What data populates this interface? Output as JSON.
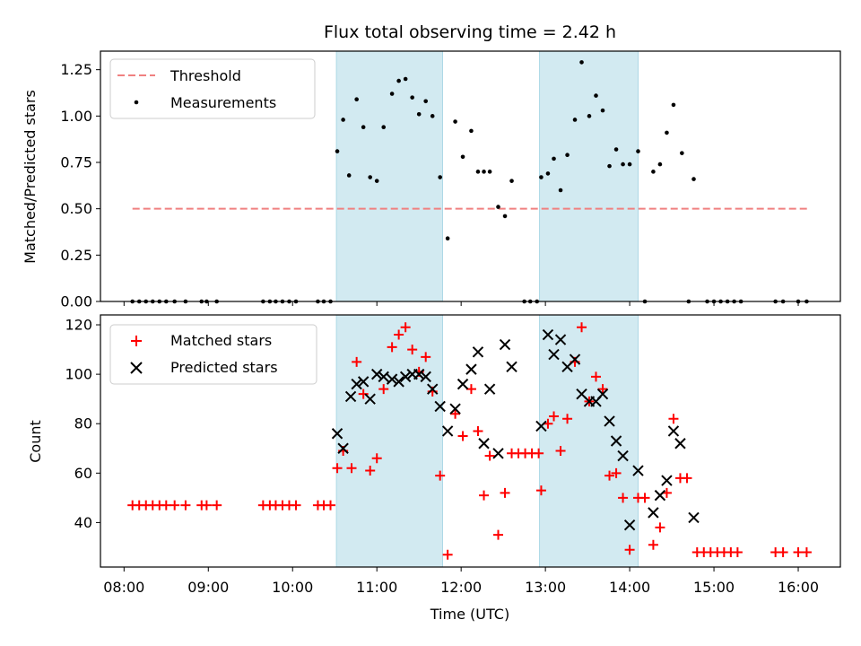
{
  "chart_data": {
    "type": "scatter",
    "title": "Flux total observing time = 2.42 h",
    "xlabel": "Time (UTC)",
    "x_range_hours": [
      7.72,
      16.5
    ],
    "x_ticks": [
      {
        "hour": 8,
        "label": "08:00"
      },
      {
        "hour": 9,
        "label": "09:00"
      },
      {
        "hour": 10,
        "label": "10:00"
      },
      {
        "hour": 11,
        "label": "11:00"
      },
      {
        "hour": 12,
        "label": "12:00"
      },
      {
        "hour": 13,
        "label": "13:00"
      },
      {
        "hour": 14,
        "label": "14:00"
      },
      {
        "hour": 15,
        "label": "15:00"
      },
      {
        "hour": 16,
        "label": "16:00"
      }
    ],
    "shaded_intervals_hours": [
      [
        10.52,
        11.78
      ],
      [
        12.93,
        14.1
      ]
    ],
    "shade_color": "#add8e6",
    "panels": [
      {
        "id": "ratio",
        "ylabel": "Matched/Predicted stars",
        "ylim": [
          0,
          1.35
        ],
        "y_ticks": [
          {
            "value": 0,
            "label": "0.00"
          },
          {
            "value": 0.25,
            "label": "0.25"
          },
          {
            "value": 0.5,
            "label": "0.50"
          },
          {
            "value": 0.75,
            "label": "0.75"
          },
          {
            "value": 1.0,
            "label": "1.00"
          },
          {
            "value": 1.25,
            "label": "1.25"
          }
        ],
        "threshold": {
          "name": "Threshold",
          "value": 0.5,
          "x_range": [
            8.1,
            16.12
          ],
          "color": "#f08080"
        },
        "legend": [
          "Threshold",
          "Measurements"
        ],
        "series": [
          {
            "name": "Measurements",
            "marker": "dot",
            "color": "#000000",
            "points": [
              [
                8.1,
                0
              ],
              [
                8.18,
                0
              ],
              [
                8.26,
                0
              ],
              [
                8.34,
                0
              ],
              [
                8.42,
                0
              ],
              [
                8.5,
                0
              ],
              [
                8.6,
                0
              ],
              [
                8.73,
                0
              ],
              [
                8.92,
                0
              ],
              [
                8.98,
                0
              ],
              [
                9.1,
                0
              ],
              [
                9.65,
                0
              ],
              [
                9.73,
                0
              ],
              [
                9.8,
                0
              ],
              [
                9.88,
                0
              ],
              [
                9.96,
                0
              ],
              [
                10.04,
                0
              ],
              [
                10.3,
                0
              ],
              [
                10.37,
                0
              ],
              [
                10.45,
                0
              ],
              [
                10.53,
                0.81
              ],
              [
                10.6,
                0.98
              ],
              [
                10.67,
                0.68
              ],
              [
                10.76,
                1.09
              ],
              [
                10.84,
                0.94
              ],
              [
                10.92,
                0.67
              ],
              [
                11.0,
                0.65
              ],
              [
                11.08,
                0.94
              ],
              [
                11.18,
                1.12
              ],
              [
                11.26,
                1.19
              ],
              [
                11.34,
                1.2
              ],
              [
                11.42,
                1.1
              ],
              [
                11.5,
                1.01
              ],
              [
                11.58,
                1.08
              ],
              [
                11.66,
                1.0
              ],
              [
                11.75,
                0.67
              ],
              [
                11.84,
                0.34
              ],
              [
                11.93,
                0.97
              ],
              [
                12.02,
                0.78
              ],
              [
                12.12,
                0.92
              ],
              [
                12.2,
                0.7
              ],
              [
                12.27,
                0.7
              ],
              [
                12.34,
                0.7
              ],
              [
                12.44,
                0.51
              ],
              [
                12.52,
                0.46
              ],
              [
                12.6,
                0.65
              ],
              [
                12.75,
                0
              ],
              [
                12.82,
                0
              ],
              [
                12.9,
                0
              ],
              [
                12.95,
                0.67
              ],
              [
                13.03,
                0.69
              ],
              [
                13.1,
                0.77
              ],
              [
                13.18,
                0.6
              ],
              [
                13.26,
                0.79
              ],
              [
                13.35,
                0.98
              ],
              [
                13.43,
                1.29
              ],
              [
                13.52,
                1.0
              ],
              [
                13.6,
                1.11
              ],
              [
                13.68,
                1.03
              ],
              [
                13.76,
                0.73
              ],
              [
                13.84,
                0.82
              ],
              [
                13.92,
                0.74
              ],
              [
                14.0,
                0.74
              ],
              [
                14.1,
                0.81
              ],
              [
                14.18,
                0
              ],
              [
                14.28,
                0.7
              ],
              [
                14.36,
                0.74
              ],
              [
                14.44,
                0.91
              ],
              [
                14.52,
                1.06
              ],
              [
                14.62,
                0.8
              ],
              [
                14.76,
                0.66
              ],
              [
                14.7,
                0
              ],
              [
                14.92,
                0
              ],
              [
                15.0,
                0
              ],
              [
                15.08,
                0
              ],
              [
                15.16,
                0
              ],
              [
                15.24,
                0
              ],
              [
                15.32,
                0
              ],
              [
                15.73,
                0
              ],
              [
                15.82,
                0
              ],
              [
                16.0,
                0
              ],
              [
                16.1,
                0
              ]
            ]
          }
        ]
      },
      {
        "id": "counts",
        "ylabel": "Count",
        "ylim": [
          22,
          124
        ],
        "y_ticks": [
          {
            "value": 40,
            "label": "40"
          },
          {
            "value": 60,
            "label": "60"
          },
          {
            "value": 80,
            "label": "80"
          },
          {
            "value": 100,
            "label": "100"
          },
          {
            "value": 120,
            "label": "120"
          }
        ],
        "legend": [
          "Matched stars",
          "Predicted stars"
        ],
        "series": [
          {
            "name": "Matched stars",
            "marker": "plus",
            "color": "#ff0000",
            "points": [
              [
                8.1,
                47
              ],
              [
                8.18,
                47
              ],
              [
                8.26,
                47
              ],
              [
                8.34,
                47
              ],
              [
                8.42,
                47
              ],
              [
                8.5,
                47
              ],
              [
                8.6,
                47
              ],
              [
                8.73,
                47
              ],
              [
                8.92,
                47
              ],
              [
                8.98,
                47
              ],
              [
                9.1,
                47
              ],
              [
                9.65,
                47
              ],
              [
                9.73,
                47
              ],
              [
                9.8,
                47
              ],
              [
                9.88,
                47
              ],
              [
                9.96,
                47
              ],
              [
                10.04,
                47
              ],
              [
                10.3,
                47
              ],
              [
                10.37,
                47
              ],
              [
                10.45,
                47
              ],
              [
                10.53,
                62
              ],
              [
                10.6,
                69
              ],
              [
                10.7,
                62
              ],
              [
                10.76,
                105
              ],
              [
                10.84,
                92
              ],
              [
                10.92,
                61
              ],
              [
                11.0,
                66
              ],
              [
                11.08,
                94
              ],
              [
                11.18,
                111
              ],
              [
                11.26,
                116
              ],
              [
                11.34,
                119
              ],
              [
                11.42,
                110
              ],
              [
                11.5,
                101
              ],
              [
                11.58,
                107
              ],
              [
                11.66,
                93
              ],
              [
                11.75,
                59
              ],
              [
                11.84,
                27
              ],
              [
                11.93,
                84
              ],
              [
                12.02,
                75
              ],
              [
                12.12,
                94
              ],
              [
                12.2,
                77
              ],
              [
                12.27,
                51
              ],
              [
                12.34,
                67
              ],
              [
                12.44,
                35
              ],
              [
                12.52,
                52
              ],
              [
                12.6,
                68
              ],
              [
                12.68,
                68
              ],
              [
                12.76,
                68
              ],
              [
                12.84,
                68
              ],
              [
                12.92,
                68
              ],
              [
                12.95,
                53
              ],
              [
                13.03,
                80
              ],
              [
                13.1,
                83
              ],
              [
                13.18,
                69
              ],
              [
                13.26,
                82
              ],
              [
                13.35,
                105
              ],
              [
                13.43,
                119
              ],
              [
                13.52,
                89
              ],
              [
                13.6,
                99
              ],
              [
                13.68,
                94
              ],
              [
                13.76,
                59
              ],
              [
                13.84,
                60
              ],
              [
                13.92,
                50
              ],
              [
                14.0,
                29
              ],
              [
                14.1,
                50
              ],
              [
                14.18,
                50
              ],
              [
                14.28,
                31
              ],
              [
                14.36,
                38
              ],
              [
                14.44,
                52
              ],
              [
                14.52,
                82
              ],
              [
                14.6,
                58
              ],
              [
                14.68,
                58
              ],
              [
                14.8,
                28
              ],
              [
                14.88,
                28
              ],
              [
                14.96,
                28
              ],
              [
                15.04,
                28
              ],
              [
                15.12,
                28
              ],
              [
                15.2,
                28
              ],
              [
                15.28,
                28
              ],
              [
                15.73,
                28
              ],
              [
                15.82,
                28
              ],
              [
                16.0,
                28
              ],
              [
                16.1,
                28
              ]
            ]
          },
          {
            "name": "Predicted stars",
            "marker": "x",
            "color": "#000000",
            "points": [
              [
                10.53,
                76
              ],
              [
                10.6,
                70
              ],
              [
                10.69,
                91
              ],
              [
                10.76,
                96
              ],
              [
                10.84,
                97
              ],
              [
                10.92,
                90
              ],
              [
                11.0,
                100
              ],
              [
                11.08,
                99
              ],
              [
                11.18,
                98
              ],
              [
                11.26,
                97
              ],
              [
                11.34,
                99
              ],
              [
                11.42,
                100
              ],
              [
                11.5,
                100
              ],
              [
                11.58,
                99
              ],
              [
                11.66,
                94
              ],
              [
                11.75,
                87
              ],
              [
                11.84,
                77
              ],
              [
                11.93,
                86
              ],
              [
                12.02,
                96
              ],
              [
                12.12,
                102
              ],
              [
                12.2,
                109
              ],
              [
                12.27,
                72
              ],
              [
                12.34,
                94
              ],
              [
                12.44,
                68
              ],
              [
                12.52,
                112
              ],
              [
                12.6,
                103
              ],
              [
                12.95,
                79
              ],
              [
                13.03,
                116
              ],
              [
                13.1,
                108
              ],
              [
                13.18,
                114
              ],
              [
                13.26,
                103
              ],
              [
                13.35,
                106
              ],
              [
                13.43,
                92
              ],
              [
                13.52,
                89
              ],
              [
                13.6,
                89
              ],
              [
                13.68,
                92
              ],
              [
                13.76,
                81
              ],
              [
                13.84,
                73
              ],
              [
                13.92,
                67
              ],
              [
                14.0,
                39
              ],
              [
                14.1,
                61
              ],
              [
                14.28,
                44
              ],
              [
                14.36,
                51
              ],
              [
                14.44,
                57
              ],
              [
                14.52,
                77
              ],
              [
                14.6,
                72
              ],
              [
                14.76,
                42
              ]
            ]
          }
        ]
      }
    ]
  }
}
